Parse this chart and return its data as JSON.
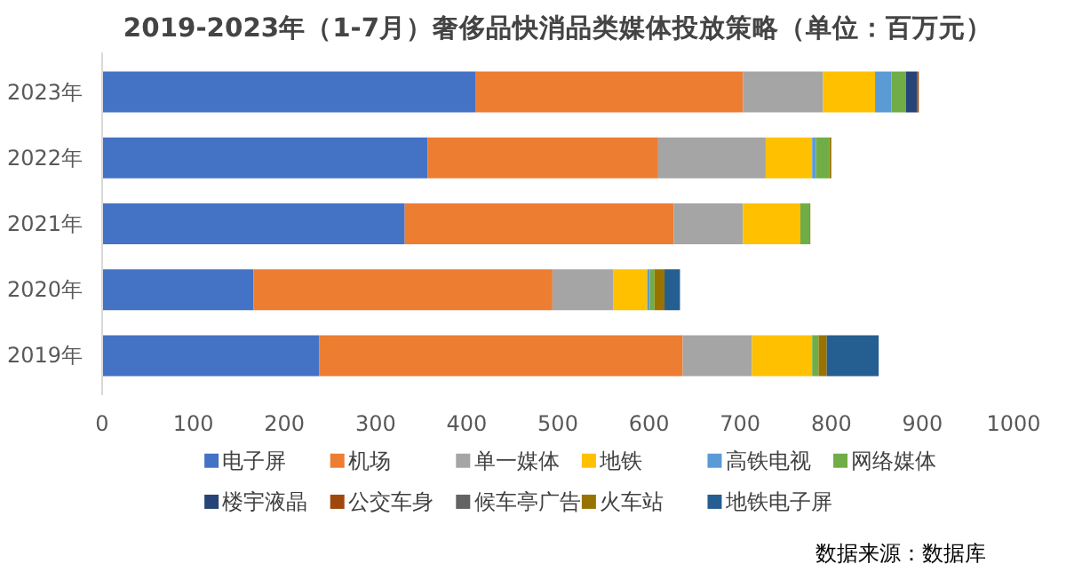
{
  "chart_data": {
    "type": "bar",
    "orientation": "horizontal",
    "stacked": true,
    "title": "2019-2023年（1-7月）奢侈品快消品类媒体投放策略（单位：百万元）",
    "categories": [
      "2023年",
      "2022年",
      "2021年",
      "2020年",
      "2019年"
    ],
    "series": [
      {
        "name": "电子屏",
        "color": "#4472c4",
        "values": [
          410,
          357,
          332,
          166,
          238
        ]
      },
      {
        "name": "机场",
        "color": "#ed7d31",
        "values": [
          293,
          253,
          295,
          328,
          399
        ]
      },
      {
        "name": "单一媒体",
        "color": "#a5a5a5",
        "values": [
          88,
          118,
          76,
          67,
          76
        ]
      },
      {
        "name": "地铁",
        "color": "#ffc000",
        "values": [
          57,
          51,
          63,
          37,
          66
        ]
      },
      {
        "name": "高铁电视",
        "color": "#5b9bd5",
        "values": [
          18,
          4,
          0,
          3,
          0
        ]
      },
      {
        "name": "网络媒体",
        "color": "#70ad47",
        "values": [
          16,
          15,
          10,
          5,
          7
        ]
      },
      {
        "name": "楼宇液晶",
        "color": "#264478",
        "values": [
          12,
          0,
          0,
          0,
          0
        ]
      },
      {
        "name": "公交车身",
        "color": "#9e480e",
        "values": [
          2,
          0,
          0,
          0,
          0
        ]
      },
      {
        "name": "候车亭广告",
        "color": "#636363",
        "values": [
          0,
          0,
          0,
          0,
          0
        ]
      },
      {
        "name": "火车站",
        "color": "#997300",
        "values": [
          0,
          2,
          1,
          11,
          9
        ]
      },
      {
        "name": "地铁电子屏",
        "color": "#255e91",
        "values": [
          0,
          0,
          0,
          17,
          57
        ]
      }
    ],
    "xlim": [
      0,
      1000
    ],
    "xticks": [
      0,
      100,
      200,
      300,
      400,
      500,
      600,
      700,
      800,
      900,
      1000
    ],
    "grid": false,
    "legend": "bottom",
    "annotations": [
      "数据来源：数据库"
    ]
  }
}
